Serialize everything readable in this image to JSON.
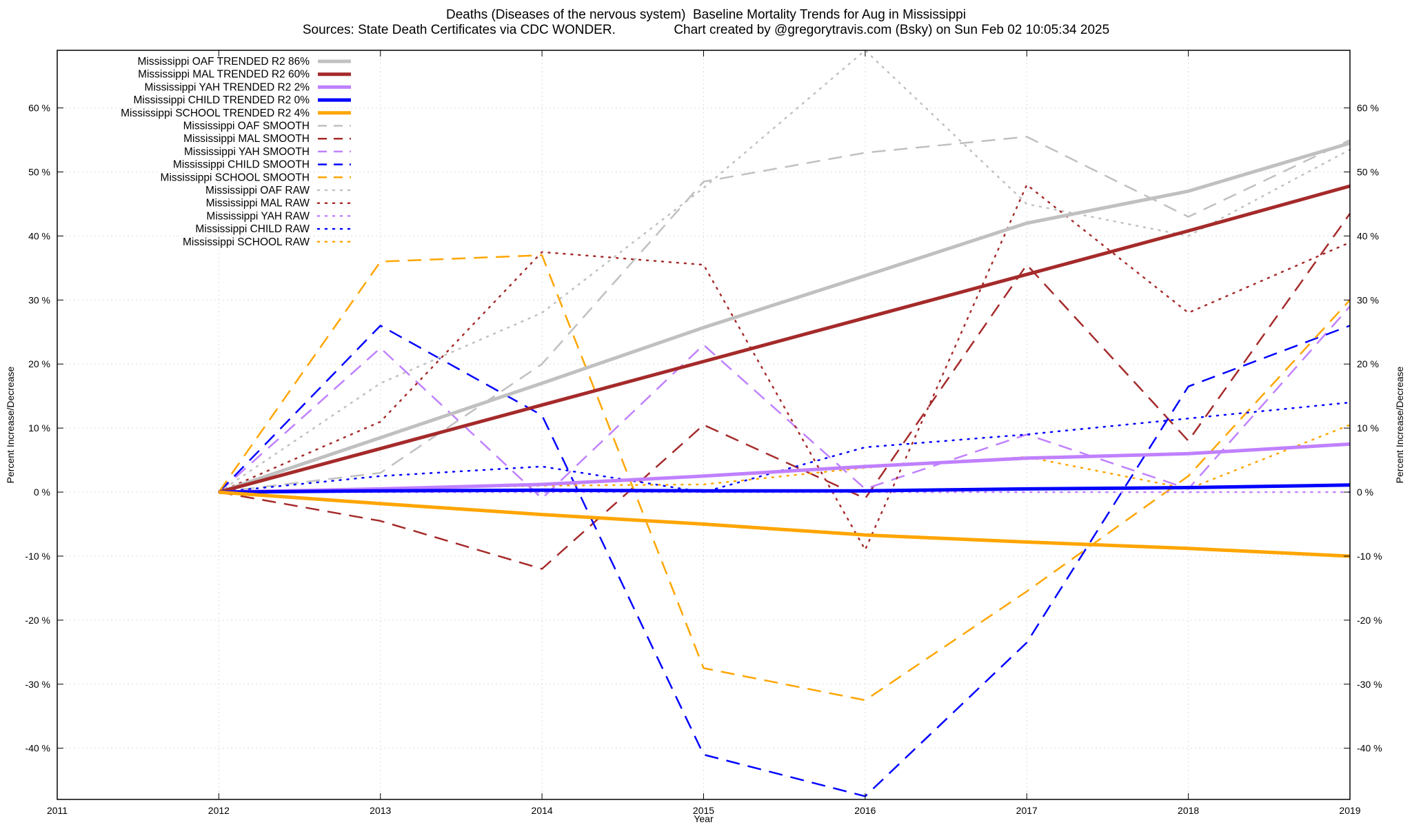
{
  "chart_data": {
    "type": "line",
    "title": "Deaths (Diseases of the nervous system)  Baseline Mortality Trends for Aug in Mississippi",
    "subtitle": "Sources: State Death Certificates via CDC WONDER.                Chart created by @gregorytravis.com (Bsky) on Sun Feb 02 10:05:34 2025",
    "xlabel": "Year",
    "ylabel": "Percent Increase/Decrease",
    "y2label": "Percent Increase/Decrease",
    "xlim": [
      2011,
      2019
    ],
    "ylim": [
      -48,
      69
    ],
    "x_ticks": [
      2011,
      2012,
      2013,
      2014,
      2015,
      2016,
      2017,
      2018,
      2019
    ],
    "y_ticks": [
      -40,
      -30,
      -20,
      -10,
      0,
      10,
      20,
      30,
      40,
      50,
      60
    ],
    "y_tick_suffix": " %",
    "grid": true,
    "legend_position": "top-left",
    "x": [
      2012,
      2013,
      2014,
      2015,
      2016,
      2017,
      2018,
      2019
    ],
    "series": [
      {
        "name": "Mississippi OAF TRENDED R2  86%",
        "color": "#c0c0c0",
        "style": "solid",
        "values": [
          0,
          8.5,
          17,
          25.7,
          33.8,
          42,
          47,
          54.5
        ]
      },
      {
        "name": "Mississippi MAL TRENDED R2  60%",
        "color": "#a52a2a",
        "style": "solid",
        "values": [
          0,
          6.8,
          13.6,
          20.4,
          27.2,
          34,
          40.8,
          47.8
        ]
      },
      {
        "name": "Mississippi YAH TRENDED R2   2%",
        "color": "#c080ff",
        "style": "solid",
        "values": [
          0,
          0.5,
          1.2,
          2.5,
          4,
          5.3,
          6,
          7.5
        ]
      },
      {
        "name": "Mississippi CHILD TRENDED R2   0%",
        "color": "#0000ff",
        "style": "solid",
        "values": [
          0,
          0.2,
          0.3,
          0.2,
          0.2,
          0.5,
          0.7,
          1.1
        ]
      },
      {
        "name": "Mississippi SCHOOL TRENDED R2   4%",
        "color": "#ffa500",
        "style": "solid",
        "values": [
          0,
          -1.8,
          -3.5,
          -5,
          -6.7,
          -7.8,
          -8.8,
          -10
        ]
      },
      {
        "name": "Mississippi OAF SMOOTH",
        "color": "#c0c0c0",
        "style": "dashed",
        "values": [
          0,
          3,
          20,
          48.5,
          53,
          55.5,
          43,
          55
        ]
      },
      {
        "name": "Mississippi MAL SMOOTH",
        "color": "#a52a2a",
        "style": "dashed",
        "values": [
          0,
          -4.5,
          -12,
          10.5,
          -1,
          35.5,
          8,
          43.5
        ]
      },
      {
        "name": "Mississippi YAH SMOOTH",
        "color": "#c080ff",
        "style": "dashed",
        "values": [
          0,
          22.5,
          -1,
          23,
          0.5,
          9,
          0.5,
          29
        ]
      },
      {
        "name": "Mississippi CHILD SMOOTH",
        "color": "#0000ff",
        "style": "dashed",
        "values": [
          0,
          26,
          12,
          -41,
          -47.5,
          -23.5,
          16.5,
          26
        ]
      },
      {
        "name": "Mississippi SCHOOL SMOOTH",
        "color": "#ffa500",
        "style": "dashed",
        "values": [
          0,
          36,
          37,
          -27.5,
          -32.5,
          -15.5,
          2.5,
          30
        ]
      },
      {
        "name": "Mississippi OAF RAW",
        "color": "#c0c0c0",
        "style": "dotted",
        "values": [
          0,
          17,
          28,
          47.5,
          69,
          45,
          40,
          53.5
        ]
      },
      {
        "name": "Mississippi MAL RAW",
        "color": "#a52a2a",
        "style": "dotted",
        "values": [
          0,
          11,
          37.5,
          35.5,
          -9,
          48,
          28,
          39
        ]
      },
      {
        "name": "Mississippi YAH RAW",
        "color": "#c080ff",
        "style": "dotted",
        "values": [
          0,
          0,
          0,
          0,
          0,
          0,
          0,
          0
        ]
      },
      {
        "name": "Mississippi CHILD RAW",
        "color": "#0000ff",
        "style": "dotted",
        "values": [
          0,
          2.5,
          4,
          0,
          7,
          9,
          11.5,
          14
        ]
      },
      {
        "name": "Mississippi SCHOOL RAW",
        "color": "#ffa500",
        "style": "dotted",
        "values": [
          0,
          0.5,
          1,
          1.2,
          3.8,
          5.5,
          0.5,
          10.5
        ]
      }
    ]
  }
}
